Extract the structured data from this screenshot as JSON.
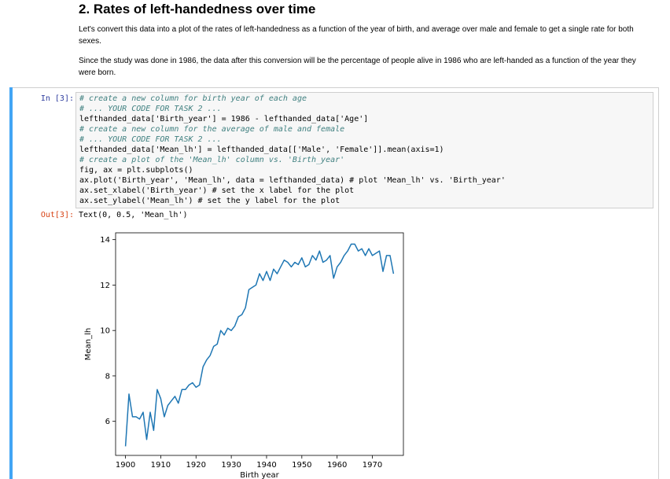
{
  "markdown": {
    "title": "2. Rates of left-handedness over time",
    "p1": "Let's convert this data into a plot of the rates of left-handedness as a function of the year of birth, and average over male and female to get a single rate for both sexes.",
    "p2": "Since the study was done in 1986, the data after this conversion will be the percentage of people alive in 1986 who are left-handed as a function of the year they were born."
  },
  "cell": {
    "in_prompt": "In [3]:",
    "out_prompt": "Out[3]:",
    "code_lines": [
      "# create a new column for birth year of each age",
      "# ... YOUR CODE FOR TASK 2 ...",
      "lefthanded_data['Birth_year'] = 1986 - lefthanded_data['Age']",
      "# create a new column for the average of male and female",
      "# ... YOUR CODE FOR TASK 2 ...",
      "lefthanded_data['Mean_lh'] = lefthanded_data[['Male', 'Female']].mean(axis=1)",
      "# create a plot of the 'Mean_lh' column vs. 'Birth_year'",
      "fig, ax = plt.subplots()",
      "ax.plot('Birth_year', 'Mean_lh', data = lefthanded_data) # plot 'Mean_lh' vs. 'Birth_year'",
      "ax.set_xlabel('Birth_year') # set the x label for the plot",
      "ax.set_ylabel('Mean_lh') # set the y label for the plot"
    ],
    "output_text": "Text(0, 0.5, 'Mean_lh')"
  },
  "chart_data": {
    "type": "line",
    "xlabel": "Birth year",
    "ylabel": "Mean_lh",
    "xlim": [
      1897.2,
      1978.8
    ],
    "ylim": [
      4.5,
      14.3
    ],
    "xticks": [
      1900,
      1910,
      1920,
      1930,
      1940,
      1950,
      1960,
      1970
    ],
    "yticks": [
      6,
      8,
      10,
      12,
      14
    ],
    "line_color": "#1f77b4",
    "grid": false,
    "series": [
      {
        "x": [
          1900,
          1901,
          1902,
          1903,
          1904,
          1905,
          1906,
          1907,
          1908,
          1909,
          1910,
          1911,
          1912,
          1913,
          1914,
          1915,
          1916,
          1917,
          1918,
          1919,
          1920,
          1921,
          1922,
          1923,
          1924,
          1925,
          1926,
          1927,
          1928,
          1929,
          1930,
          1931,
          1932,
          1933,
          1934,
          1935,
          1936,
          1937,
          1938,
          1939,
          1940,
          1941,
          1942,
          1943,
          1944,
          1945,
          1946,
          1947,
          1948,
          1949,
          1950,
          1951,
          1952,
          1953,
          1954,
          1955,
          1956,
          1957,
          1958,
          1959,
          1960,
          1961,
          1962,
          1963,
          1964,
          1965,
          1966,
          1967,
          1968,
          1969,
          1970,
          1971,
          1972,
          1973,
          1974,
          1975,
          1976
        ],
        "y": [
          4.9,
          7.2,
          6.2,
          6.2,
          6.1,
          6.4,
          5.2,
          6.4,
          5.6,
          7.4,
          7.0,
          6.2,
          6.7,
          6.9,
          7.1,
          6.8,
          7.4,
          7.4,
          7.6,
          7.7,
          7.5,
          7.6,
          8.4,
          8.7,
          8.9,
          9.3,
          9.4,
          10.0,
          9.8,
          10.1,
          10.0,
          10.2,
          10.6,
          10.7,
          11.0,
          11.8,
          11.9,
          12.0,
          12.5,
          12.2,
          12.6,
          12.2,
          12.7,
          12.5,
          12.8,
          13.1,
          13.0,
          12.8,
          13.0,
          12.9,
          13.2,
          12.8,
          12.9,
          13.3,
          13.1,
          13.5,
          13.0,
          13.1,
          13.3,
          12.3,
          12.8,
          13.0,
          13.3,
          13.5,
          13.8,
          13.8,
          13.5,
          13.6,
          13.3,
          13.6,
          13.3,
          13.4,
          13.5,
          12.6,
          13.3,
          13.3,
          12.5
        ]
      }
    ]
  }
}
